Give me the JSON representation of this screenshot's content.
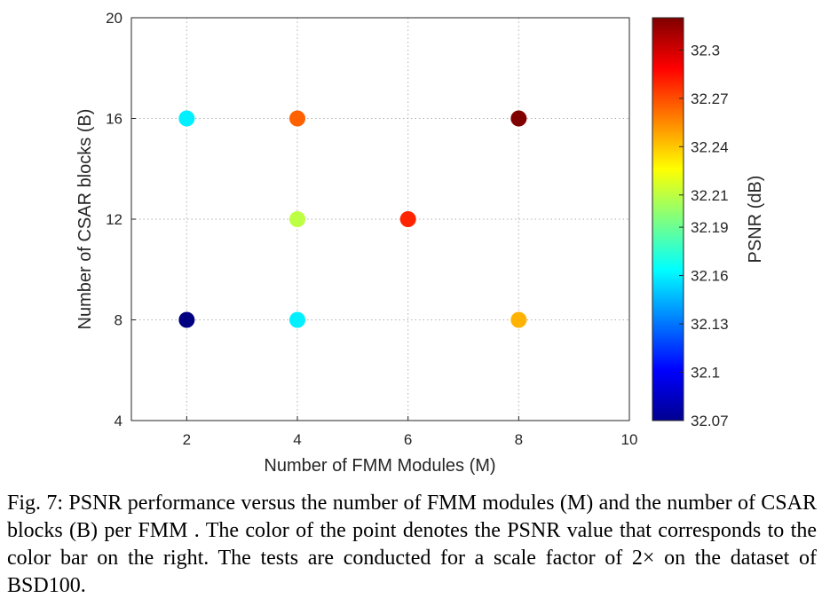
{
  "chart_data": {
    "type": "scatter",
    "xlabel": "Number of FMM Modules (M)",
    "ylabel": "Number of CSAR blocks (B)",
    "xlim": [
      1,
      10
    ],
    "ylim": [
      4,
      20
    ],
    "x_ticks": [
      2,
      4,
      6,
      8,
      10
    ],
    "y_ticks": [
      4,
      8,
      12,
      16,
      20
    ],
    "grid": true,
    "colormap": "jet",
    "colorbar": {
      "label": "PSNR (dB)",
      "min": 32.07,
      "max": 32.32,
      "ticks": [
        32.07,
        32.1,
        32.13,
        32.16,
        32.19,
        32.21,
        32.24,
        32.27,
        32.3
      ]
    },
    "points": [
      {
        "x": 2,
        "y": 16,
        "psnr": 32.16
      },
      {
        "x": 4,
        "y": 16,
        "psnr": 32.265
      },
      {
        "x": 8,
        "y": 16,
        "psnr": 32.32
      },
      {
        "x": 4,
        "y": 12,
        "psnr": 32.21
      },
      {
        "x": 6,
        "y": 12,
        "psnr": 32.28
      },
      {
        "x": 2,
        "y": 8,
        "psnr": 32.07
      },
      {
        "x": 4,
        "y": 8,
        "psnr": 32.16
      },
      {
        "x": 8,
        "y": 8,
        "psnr": 32.245
      }
    ]
  },
  "caption": "Fig. 7: PSNR performance versus the number of FMM modules (M) and the number of CSAR blocks (B) per FMM . The color of the point denotes the PSNR value that corresponds to the color bar on the right. The tests are conducted for a scale factor of 2× on the dataset of BSD100."
}
